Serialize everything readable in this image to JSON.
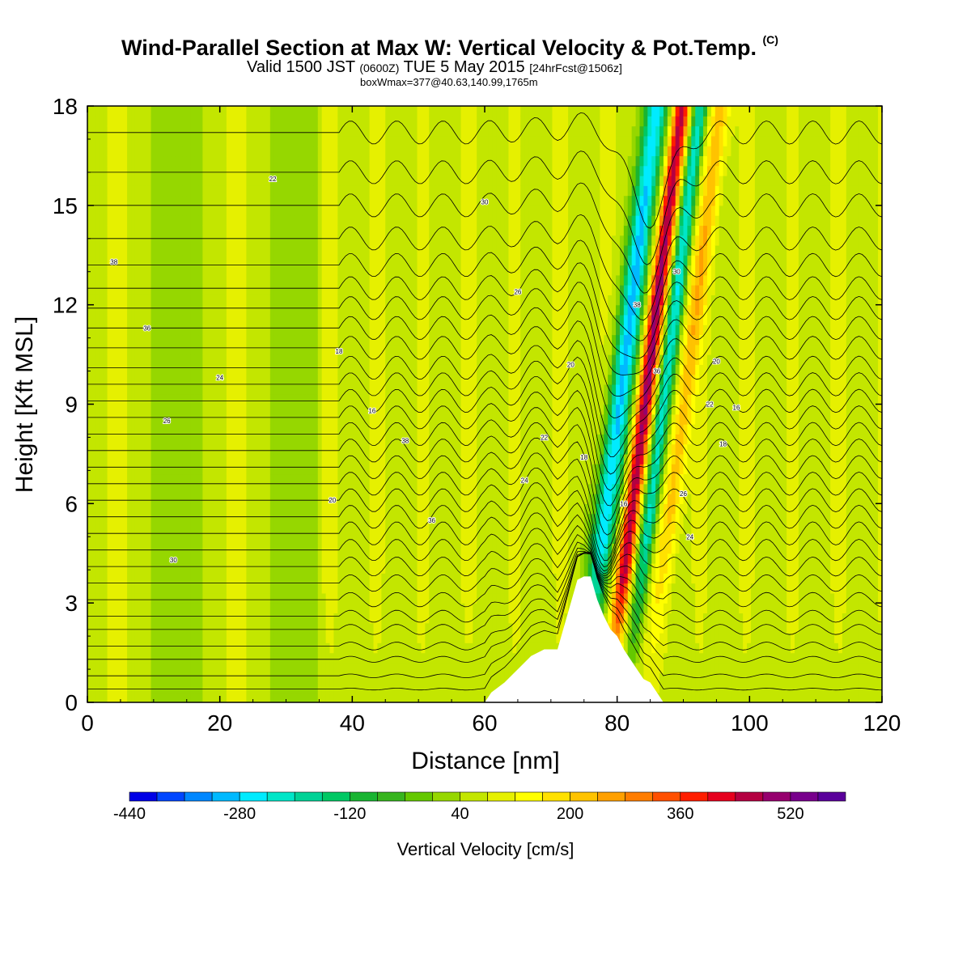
{
  "header": {
    "title": "Wind-Parallel Section at Max W: Vertical Velocity & Pot.Temp.",
    "copyright": "(C)",
    "valid_prefix": "Valid 1500 JST",
    "valid_utc": "(0600Z)",
    "valid_date": "TUE 5 May 2015",
    "forecast": "[24hrFcst@1506z]",
    "boxinfo": "boxWmax=377@40.63,140.99,1765m"
  },
  "chart_data": {
    "type": "heatmap",
    "title": "Wind-Parallel Section at Max W: Vertical Velocity & Pot.Temp.",
    "xlabel": "Distance [nm]",
    "ylabel": "Height [Kft MSL]",
    "xlim": [
      0,
      120
    ],
    "ylim": [
      0,
      18
    ],
    "xticks": [
      0,
      20,
      40,
      60,
      80,
      100,
      120
    ],
    "yticks": [
      0,
      3,
      6,
      9,
      12,
      15,
      18
    ],
    "colorbar": {
      "label": "Vertical Velocity [cm/s]",
      "tick_labels": [
        "-440",
        "-280",
        "-120",
        "40",
        "200",
        "360",
        "520"
      ],
      "colors": [
        "#0000e6",
        "#0046ff",
        "#0087ff",
        "#00b9ff",
        "#00ebff",
        "#00e6c8",
        "#00d296",
        "#00c864",
        "#19b432",
        "#37b41e",
        "#64c800",
        "#96d700",
        "#c3e600",
        "#e6f000",
        "#ffff00",
        "#ffe100",
        "#ffc300",
        "#ffa000",
        "#ff7d00",
        "#ff5000",
        "#ff1e00",
        "#e6001e",
        "#b40041",
        "#96006e",
        "#78008c",
        "#5a009b"
      ]
    },
    "contour_labels": [
      "38",
      "36",
      "30",
      "26",
      "24",
      "22",
      "20",
      "18",
      "16"
    ],
    "terrain": [
      [
        60,
        0
      ],
      [
        61,
        0.3
      ],
      [
        63,
        0.6
      ],
      [
        65,
        1.0
      ],
      [
        67,
        1.4
      ],
      [
        69,
        1.6
      ],
      [
        71,
        1.6
      ],
      [
        72,
        2.3
      ],
      [
        73,
        3.0
      ],
      [
        74,
        3.7
      ],
      [
        75,
        3.8
      ],
      [
        76,
        3.8
      ],
      [
        77,
        3.1
      ],
      [
        78,
        2.6
      ],
      [
        79,
        2.2
      ],
      [
        80,
        2.0
      ],
      [
        81,
        1.6
      ],
      [
        82,
        1.3
      ],
      [
        83,
        1.0
      ],
      [
        84,
        0.7
      ],
      [
        85,
        0.6
      ],
      [
        86,
        0.3
      ],
      [
        87,
        0
      ],
      [
        90,
        0
      ]
    ],
    "contour_levels_ft": [
      0.4,
      0.8,
      1.3,
      1.7,
      2.2,
      2.6,
      3.1,
      3.6,
      4.1,
      4.6,
      5.1,
      5.6,
      6.1,
      6.6,
      7.1,
      7.6,
      8.1,
      8.6,
      9.1,
      9.6,
      10.1,
      10.7,
      11.3,
      11.9,
      12.5,
      13.2,
      14.0,
      15.0,
      16.0,
      17.2
    ]
  }
}
